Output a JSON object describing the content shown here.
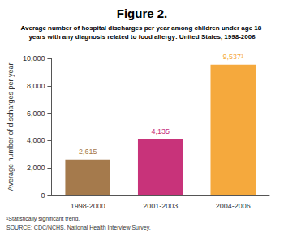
{
  "chart_data": {
    "type": "bar",
    "title": "Figure 2.",
    "subtitle": "Average number of hospital discharges per year among children under age 18 years with any diagnosis related to food allergy: United States, 1998-2006",
    "y_label": "Average number of discharges per year",
    "annotations": [
      "¹Statistically significant trend.",
      "SOURCE: CDC/NCHS, National Health Interview Survey."
    ],
    "categories": [
      "1998-2000",
      "2001-2003",
      "2004-2006"
    ],
    "values": [
      2615,
      4135,
      9537
    ],
    "value_labels": [
      "2,615",
      "4,135",
      "9,537¹"
    ],
    "colors": [
      "#a57a4c",
      "#c8337a",
      "#f5a93d"
    ],
    "ylim": [
      0,
      10000
    ],
    "yticks": [
      0,
      {
        "value": 2000,
        "label": "2,000"
      },
      {
        "value": 4000,
        "label": "4,000"
      },
      {
        "value": 6000,
        "label": "6,000"
      },
      {
        "value": 8000,
        "label": "8,000"
      },
      {
        "value": 10000,
        "label": "10,000"
      }
    ],
    "grid": false,
    "data_labels": true
  }
}
